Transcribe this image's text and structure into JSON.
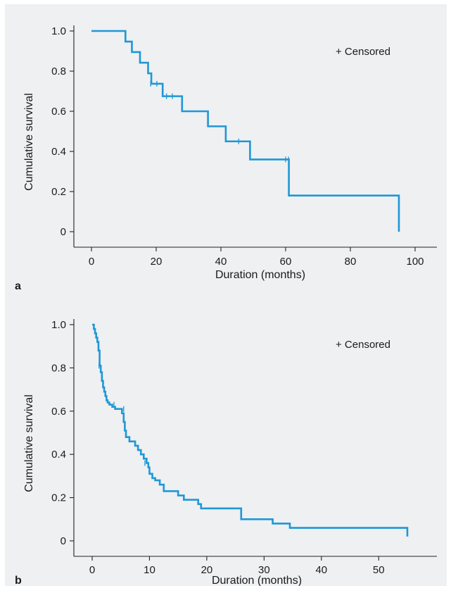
{
  "chart_data": [
    {
      "type": "line",
      "step": true,
      "panel_label": "a",
      "xlabel": "Duration (months)",
      "ylabel": "Cumulative survival",
      "xlim": [
        0,
        100
      ],
      "ylim": [
        0,
        1.0
      ],
      "xticks": [
        0,
        20,
        40,
        60,
        80,
        100
      ],
      "xtick_labels": [
        "0",
        "20",
        "40",
        "60",
        "80",
        "100"
      ],
      "yticks": [
        0,
        0.2,
        0.4,
        0.6,
        0.8,
        1.0
      ],
      "ytick_labels": [
        "0",
        "0.2",
        "0.4",
        "0.6",
        "0.8",
        "1.0"
      ],
      "legend": {
        "text": "+ Censored",
        "position": "top-right"
      },
      "curve_color": "#1f97d6",
      "series": [
        {
          "x": [
            0,
            10.5,
            12.5,
            15,
            17.5,
            18.5,
            22,
            28,
            36,
            41.5,
            49,
            61,
            95
          ],
          "y": [
            1.0,
            0.947,
            0.895,
            0.842,
            0.789,
            0.737,
            0.675,
            0.6,
            0.525,
            0.45,
            0.36,
            0.18,
            0.0
          ]
        }
      ],
      "censored": {
        "x": [
          18.3,
          20.2,
          23.2,
          25.0,
          45.5,
          60.0,
          60.9
        ],
        "y": [
          0.737,
          0.737,
          0.675,
          0.675,
          0.45,
          0.36,
          0.36
        ]
      }
    },
    {
      "type": "line",
      "step": true,
      "panel_label": "b",
      "xlabel": "Duration (months)",
      "ylabel": "Cumulative survival",
      "xlim": [
        0,
        55
      ],
      "ylim": [
        0,
        1.0
      ],
      "xticks": [
        0,
        10,
        20,
        30,
        40,
        50
      ],
      "xtick_labels": [
        "0",
        "10",
        "20",
        "30",
        "40",
        "50"
      ],
      "yticks": [
        0,
        0.2,
        0.4,
        0.6,
        0.8,
        1.0
      ],
      "ytick_labels": [
        "0",
        "0.2",
        "0.4",
        "0.6",
        "0.8",
        "1.0"
      ],
      "legend": {
        "text": "+ Censored",
        "position": "top-right"
      },
      "curve_color": "#1f97d6",
      "series": [
        {
          "x": [
            0,
            0.3,
            0.5,
            0.7,
            0.9,
            1.1,
            1.3,
            1.5,
            1.7,
            1.9,
            2.1,
            2.3,
            2.5,
            2.7,
            3.0,
            3.5,
            4.0,
            5.2,
            5.5,
            5.7,
            5.9,
            6.5,
            7.5,
            8.0,
            8.5,
            9.0,
            9.5,
            9.8,
            10.0,
            10.5,
            11.0,
            11.8,
            12.5,
            15.0,
            16.0,
            18.5,
            19.0,
            26.0,
            31.5,
            34.5,
            55.0
          ],
          "y": [
            1.0,
            0.98,
            0.96,
            0.94,
            0.92,
            0.88,
            0.81,
            0.78,
            0.74,
            0.71,
            0.69,
            0.67,
            0.65,
            0.64,
            0.63,
            0.62,
            0.61,
            0.59,
            0.55,
            0.51,
            0.48,
            0.46,
            0.44,
            0.42,
            0.4,
            0.38,
            0.36,
            0.34,
            0.31,
            0.29,
            0.28,
            0.26,
            0.23,
            0.21,
            0.19,
            0.17,
            0.15,
            0.1,
            0.08,
            0.06,
            0.02
          ]
        }
      ],
      "censored": {
        "x": [
          1.2,
          3.8,
          5.5,
          9.2
        ],
        "y": [
          0.81,
          0.63,
          0.61,
          0.36
        ]
      }
    }
  ]
}
